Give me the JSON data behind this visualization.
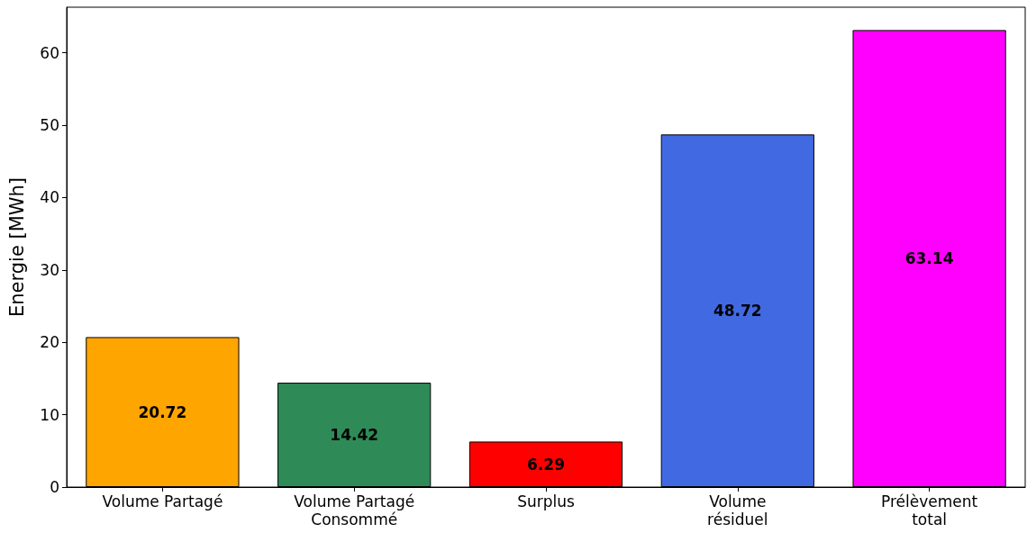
{
  "chart_data": {
    "type": "bar",
    "ylabel": "Energie [MWh]",
    "categories": [
      "Volume Partagé",
      "Volume Partagé\nConsommé",
      "Surplus",
      "Volume\nrésiduel",
      "Prélèvement\ntotal"
    ],
    "values": [
      20.72,
      14.42,
      6.29,
      48.72,
      63.14
    ],
    "colors": [
      "#ffa500",
      "#2e8b57",
      "#ff0000",
      "#4169e1",
      "#ff00ff"
    ],
    "ylim": [
      0,
      66.3
    ],
    "yticks": [
      0,
      10,
      20,
      30,
      40,
      50,
      60
    ],
    "grid": false,
    "data_labels": true
  }
}
